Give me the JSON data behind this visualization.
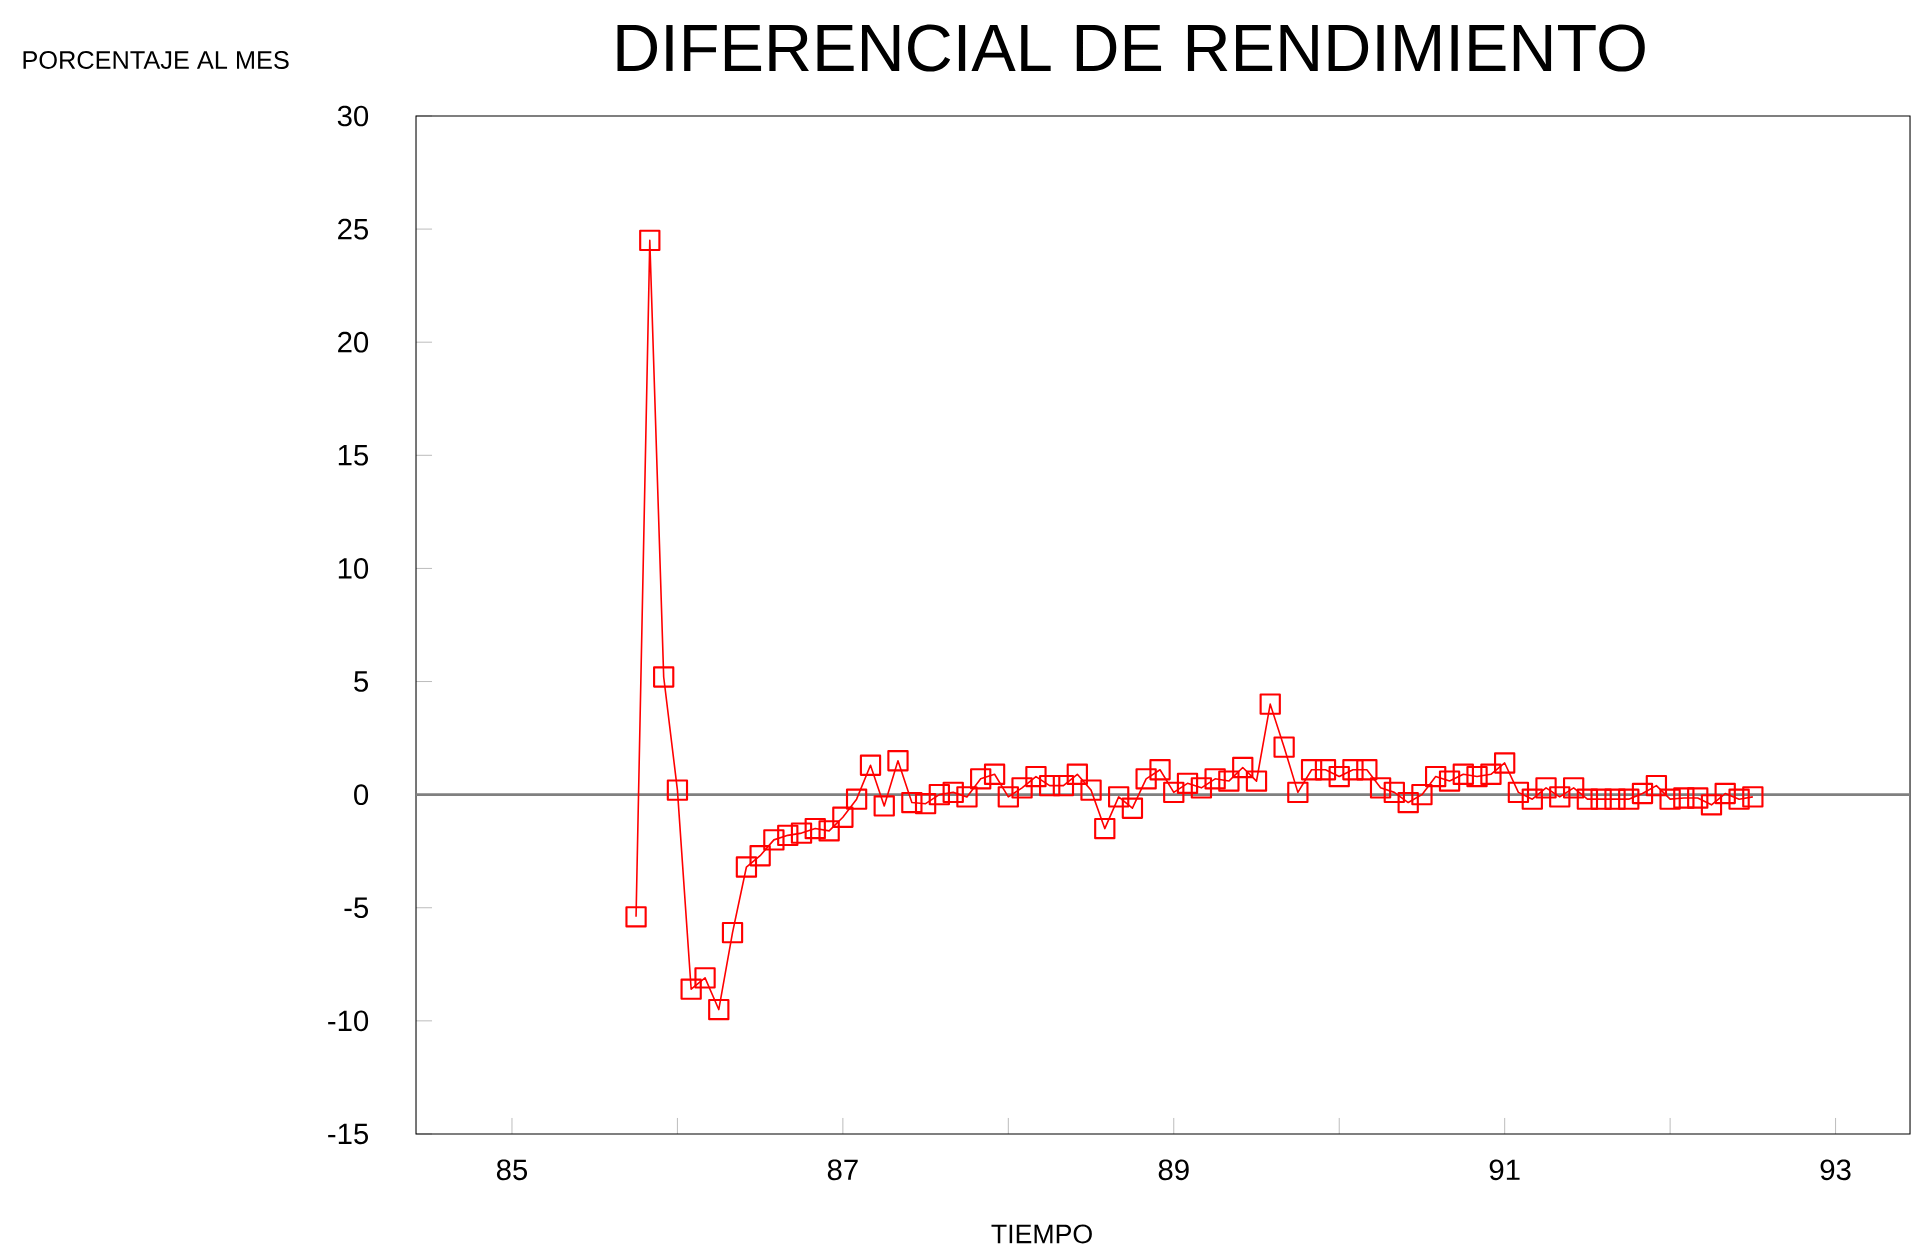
{
  "chart_data": {
    "type": "line",
    "title": "DIFERENCIAL DE RENDIMIENTO",
    "xlabel": "TIEMPO",
    "ylabel": "PORCENTAJE AL MES",
    "x": [
      85.75,
      85.833,
      85.917,
      86.0,
      86.083,
      86.167,
      86.25,
      86.333,
      86.417,
      86.5,
      86.583,
      86.667,
      86.75,
      86.833,
      86.917,
      87.0,
      87.083,
      87.167,
      87.25,
      87.333,
      87.417,
      87.5,
      87.583,
      87.667,
      87.75,
      87.833,
      87.917,
      88.0,
      88.083,
      88.167,
      88.25,
      88.333,
      88.417,
      88.5,
      88.583,
      88.667,
      88.75,
      88.833,
      88.917,
      89.0,
      89.083,
      89.167,
      89.25,
      89.333,
      89.417,
      89.5,
      89.583,
      89.667,
      89.75,
      89.833,
      89.917,
      90.0,
      90.083,
      90.167,
      90.25,
      90.333,
      90.417,
      90.5,
      90.583,
      90.667,
      90.75,
      90.833,
      90.917,
      91.0,
      91.083,
      91.167,
      91.25,
      91.333,
      91.417,
      91.5,
      91.583,
      91.667,
      91.75,
      91.833,
      91.917,
      92.0,
      92.083,
      92.167,
      92.25,
      92.333,
      92.417,
      92.5
    ],
    "series": [
      {
        "color": "#ff0000",
        "values": [
          -5.4,
          24.5,
          5.2,
          0.2,
          -8.6,
          -8.1,
          -9.5,
          -6.1,
          -3.2,
          -2.7,
          -2.0,
          -1.8,
          -1.7,
          -1.5,
          -1.6,
          -1.0,
          -0.2,
          1.3,
          -0.5,
          1.5,
          -0.35,
          -0.4,
          0.0,
          0.1,
          -0.1,
          0.7,
          0.9,
          -0.1,
          0.3,
          0.8,
          0.4,
          0.4,
          0.9,
          0.2,
          -1.5,
          -0.1,
          -0.6,
          0.7,
          1.1,
          0.1,
          0.5,
          0.3,
          0.7,
          0.6,
          1.2,
          0.6,
          4.0,
          2.1,
          0.1,
          1.1,
          1.1,
          0.8,
          1.1,
          1.1,
          0.3,
          0.1,
          -0.35,
          0.0,
          0.8,
          0.6,
          0.9,
          0.8,
          0.9,
          1.4,
          0.1,
          -0.2,
          0.3,
          -0.1,
          0.3,
          -0.2,
          -0.2,
          -0.2,
          -0.2,
          0.05,
          0.4,
          -0.2,
          -0.15,
          -0.15,
          -0.45,
          0.05,
          -0.2,
          -0.1
        ]
      }
    ],
    "xlim": [
      84.42,
      93.45
    ],
    "ylim": [
      -15,
      30
    ],
    "xticks": [
      85,
      {
        "value": 86,
        "label": null
      },
      87,
      {
        "value": 88,
        "label": null
      },
      89,
      {
        "value": 90,
        "label": null
      },
      91,
      {
        "value": 92,
        "label": null
      },
      93
    ],
    "yticks": [
      -15,
      -10,
      -5,
      0,
      5,
      10,
      15,
      20,
      25,
      30
    ],
    "marker": "square",
    "ref_lines": [
      {
        "axis": "y",
        "value": 0,
        "color": "#808080"
      }
    ]
  }
}
